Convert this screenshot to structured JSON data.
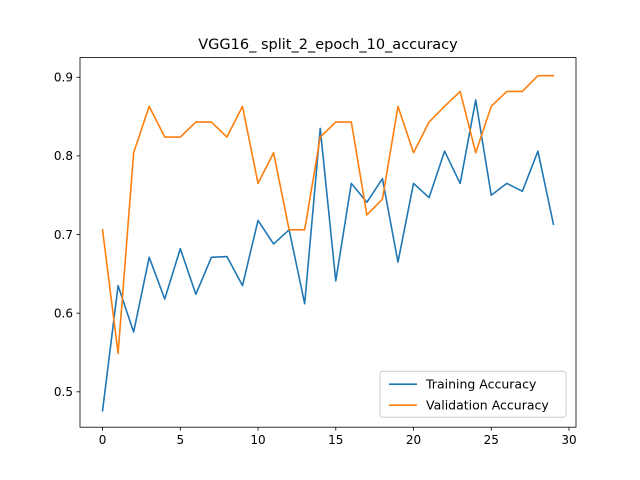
{
  "chart_data": {
    "type": "line",
    "title": "VGG16_ split_2_epoch_10_accuracy",
    "xlabel": "",
    "ylabel": "",
    "xlim": [
      -1.45,
      30.45
    ],
    "ylim": [
      0.455,
      0.925
    ],
    "xticks": [
      0,
      5,
      10,
      15,
      20,
      25,
      30
    ],
    "yticks": [
      0.5,
      0.6,
      0.7,
      0.8,
      0.9
    ],
    "xtick_labels": [
      "0",
      "5",
      "10",
      "15",
      "20",
      "25",
      "30"
    ],
    "ytick_labels": [
      "0.5",
      "0.6",
      "0.7",
      "0.8",
      "0.9"
    ],
    "grid": false,
    "legend_position": "lower right",
    "x": [
      0,
      1,
      2,
      3,
      4,
      5,
      6,
      7,
      8,
      9,
      10,
      11,
      12,
      13,
      14,
      15,
      16,
      17,
      18,
      19,
      20,
      21,
      22,
      23,
      24,
      25,
      26,
      27,
      28,
      29
    ],
    "series": [
      {
        "name": "Training Accuracy",
        "color": "#1f77b4",
        "values": [
          0.476,
          0.635,
          0.576,
          0.671,
          0.618,
          0.682,
          0.624,
          0.671,
          0.672,
          0.635,
          0.718,
          0.688,
          0.706,
          0.612,
          0.835,
          0.641,
          0.765,
          0.741,
          0.771,
          0.665,
          0.765,
          0.747,
          0.806,
          0.765,
          0.871,
          0.75,
          0.765,
          0.755,
          0.806,
          0.713
        ]
      },
      {
        "name": "Validation Accuracy",
        "color": "#ff7f0e",
        "values": [
          0.706,
          0.549,
          0.804,
          0.863,
          0.824,
          0.824,
          0.843,
          0.843,
          0.824,
          0.863,
          0.765,
          0.804,
          0.706,
          0.706,
          0.824,
          0.843,
          0.843,
          0.725,
          0.745,
          0.863,
          0.804,
          0.843,
          0.863,
          0.882,
          0.804,
          0.863,
          0.882,
          0.882,
          0.902,
          0.902
        ]
      }
    ]
  }
}
